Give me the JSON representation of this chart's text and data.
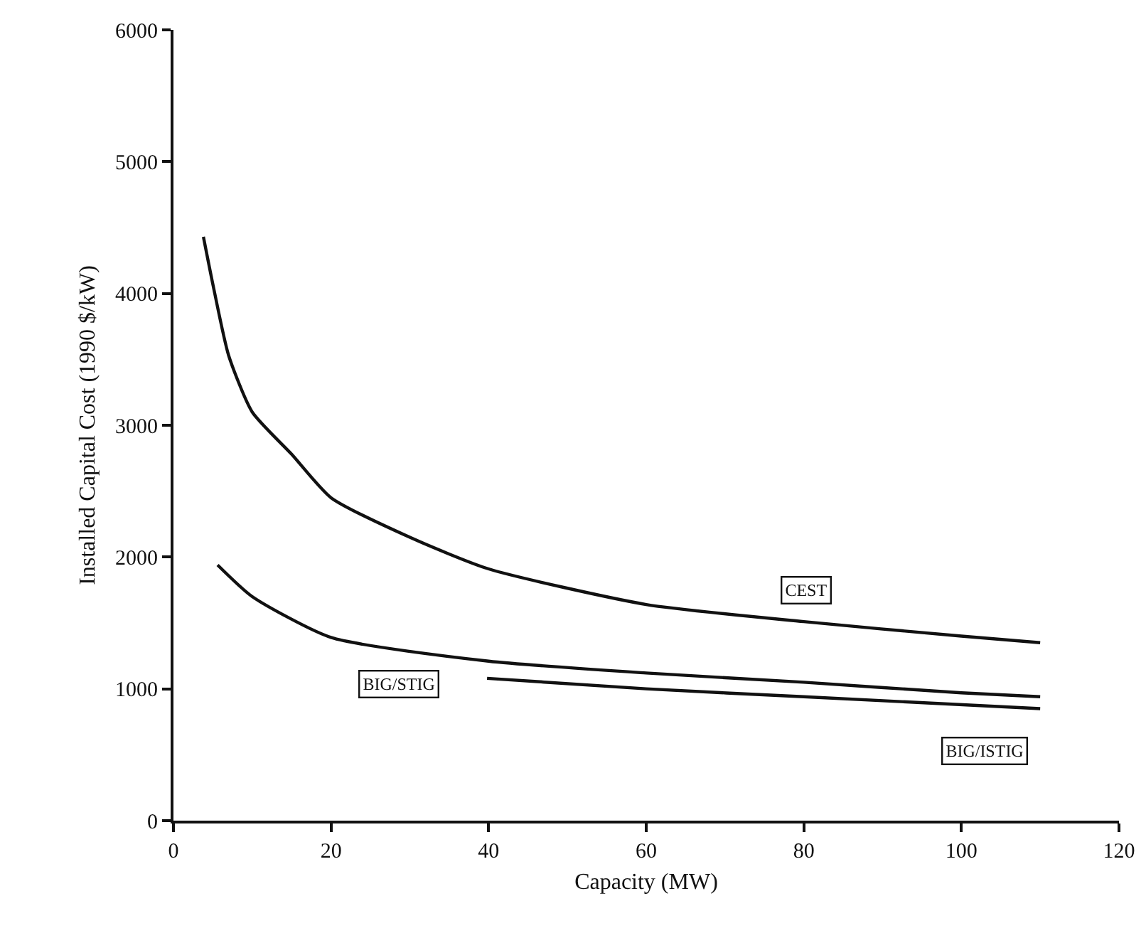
{
  "chart_data": {
    "type": "line",
    "xlabel": "Capacity (MW)",
    "ylabel": "Installed Capital Cost (1990 $/kW)",
    "xlim": [
      0,
      120
    ],
    "xticks": [
      0,
      20,
      40,
      60,
      80,
      100,
      120
    ],
    "ylim": [
      0,
      6000
    ],
    "yticks": [
      0,
      1000,
      2000,
      3000,
      4000,
      5000,
      6000
    ],
    "grid": false,
    "legend": false,
    "marker": "none",
    "line_style": "solid",
    "series": [
      {
        "name": "CEST",
        "color": "#111111",
        "x": [
          3.8,
          5,
          7,
          10,
          15,
          20,
          30,
          40,
          60,
          80,
          100,
          110
        ],
        "values": [
          4430,
          4070,
          3530,
          3100,
          2780,
          2450,
          2150,
          1910,
          1640,
          1510,
          1400,
          1350
        ]
      },
      {
        "name": "BIG/STIG",
        "color": "#111111",
        "x": [
          5.6,
          10,
          20,
          40,
          60,
          80,
          100,
          110
        ],
        "values": [
          1940,
          1700,
          1390,
          1210,
          1120,
          1050,
          970,
          940
        ]
      },
      {
        "name": "BIG/ISTIG",
        "color": "#111111",
        "x": [
          39.8,
          60,
          80,
          110
        ],
        "values": [
          1080,
          1000,
          940,
          850
        ]
      }
    ]
  }
}
